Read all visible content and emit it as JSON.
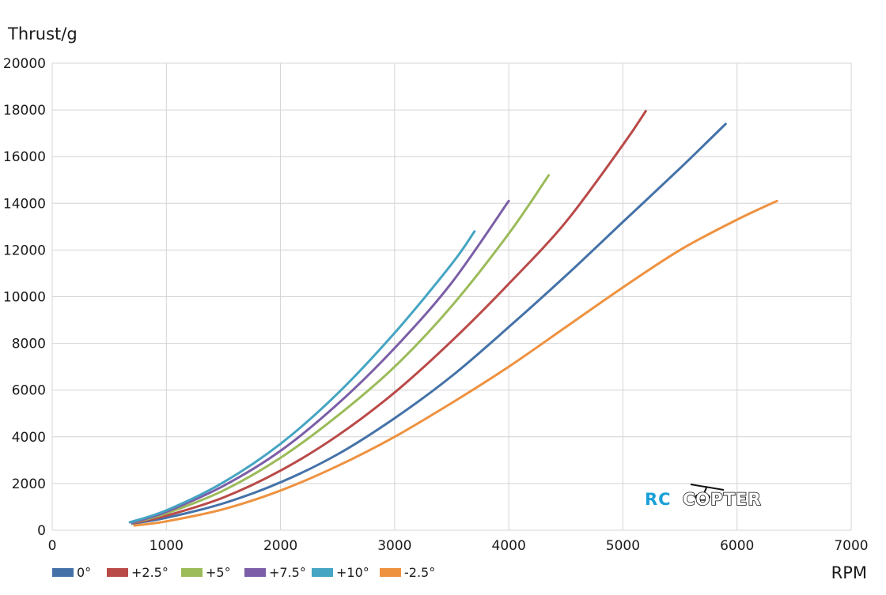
{
  "chart_data": {
    "type": "line",
    "title": "",
    "ylabel": "Thrust/g",
    "xlabel": "RPM",
    "xlim": [
      0,
      7000
    ],
    "ylim": [
      0,
      20000
    ],
    "xticks": [
      0,
      1000,
      2000,
      3000,
      4000,
      5000,
      6000,
      7000
    ],
    "yticks": [
      0,
      2000,
      4000,
      6000,
      8000,
      10000,
      12000,
      14000,
      16000,
      18000,
      20000
    ],
    "grid": true,
    "legend_position": "bottom-left",
    "series": [
      {
        "name": "0°",
        "color": "#4472a8",
        "x": [
          700,
          1000,
          1500,
          2000,
          2500,
          3000,
          3500,
          4000,
          4500,
          5000,
          5500,
          5900
        ],
        "y": [
          280,
          530,
          1150,
          2050,
          3250,
          4800,
          6600,
          8700,
          10900,
          13200,
          15500,
          17400
        ]
      },
      {
        "name": "+2.5°",
        "color": "#b94a48",
        "x": [
          700,
          1000,
          1500,
          2000,
          2500,
          3000,
          3500,
          4000,
          4500,
          5000,
          5200
        ],
        "y": [
          300,
          620,
          1400,
          2550,
          4050,
          5900,
          8100,
          10550,
          13200,
          16500,
          17950
        ]
      },
      {
        "name": "+5°",
        "color": "#9bbb59",
        "x": [
          700,
          1000,
          1500,
          2000,
          2500,
          3000,
          3500,
          4000,
          4350
        ],
        "y": [
          310,
          720,
          1700,
          3100,
          4900,
          7000,
          9600,
          12700,
          15200
        ]
      },
      {
        "name": "+7.5°",
        "color": "#7b5ea7",
        "x": [
          700,
          1000,
          1500,
          2000,
          2500,
          3000,
          3500,
          4000
        ],
        "y": [
          320,
          790,
          1900,
          3400,
          5400,
          7800,
          10600,
          14100
        ]
      },
      {
        "name": "+10°",
        "color": "#45a5c3",
        "x": [
          680,
          1000,
          1500,
          2000,
          2500,
          3000,
          3500,
          3700
        ],
        "y": [
          340,
          850,
          2050,
          3700,
          5850,
          8450,
          11400,
          12800
        ]
      },
      {
        "name": "-2.5°",
        "color": "#ee9240",
        "x": [
          720,
          1000,
          1500,
          2000,
          2500,
          3000,
          3500,
          4000,
          4500,
          5000,
          5500,
          6000,
          6350
        ],
        "y": [
          200,
          380,
          900,
          1700,
          2750,
          4000,
          5450,
          7000,
          8700,
          10400,
          12000,
          13300,
          14100
        ]
      }
    ]
  },
  "watermark": {
    "rc": "RC",
    "copter": "COPTER"
  }
}
